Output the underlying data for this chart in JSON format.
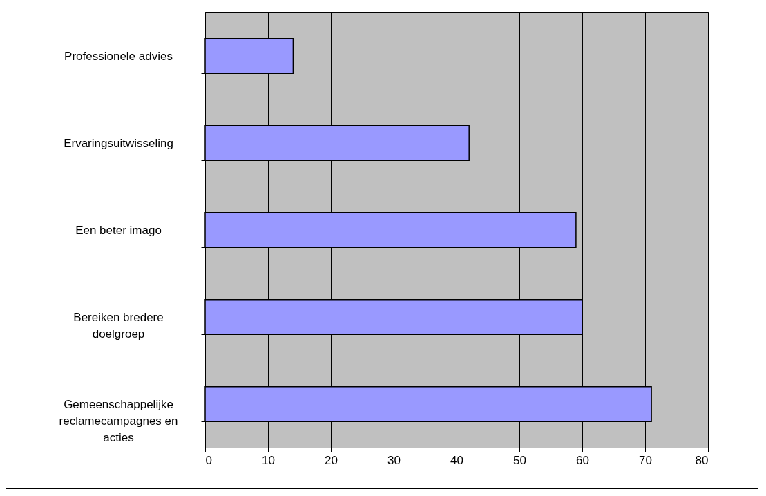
{
  "chart_data": {
    "type": "bar",
    "orientation": "horizontal",
    "categories": [
      "Professionele advies",
      "Ervaringsuitwisseling",
      "Een beter imago",
      "Bereiken bredere doelgroep",
      "Gemeenschappelijke reclamecampagnes en acties"
    ],
    "values": [
      14,
      42,
      59,
      60,
      71
    ],
    "color": "#9999ff",
    "xlim": [
      0,
      80
    ],
    "xticks": [
      0,
      10,
      20,
      30,
      40,
      50,
      60,
      70,
      80
    ],
    "grid": "x"
  }
}
